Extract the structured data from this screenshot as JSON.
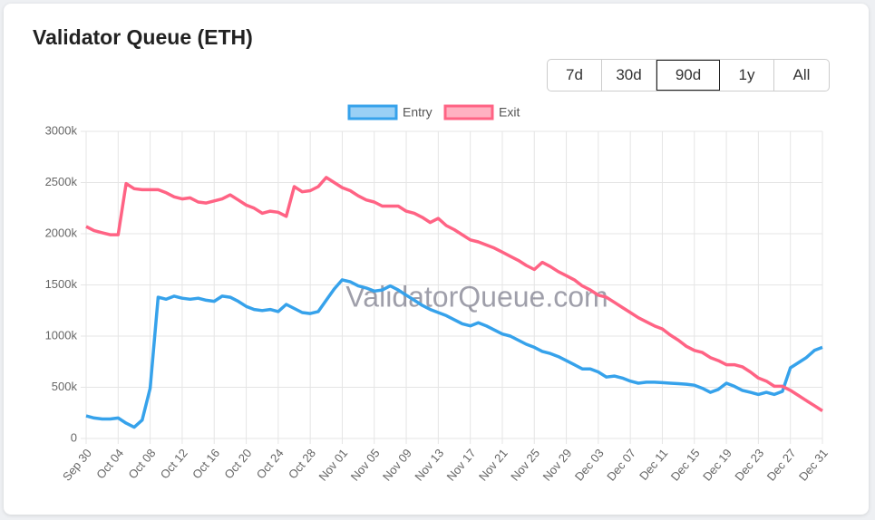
{
  "chart_data": {
    "type": "line",
    "title": "Validator Queue (ETH)",
    "watermark": "ValidatorQueue.com",
    "buttons": [
      {
        "label": "7d"
      },
      {
        "label": "30d"
      },
      {
        "label": "90d",
        "selected": true
      },
      {
        "label": "1y"
      },
      {
        "label": "All"
      }
    ],
    "categories": [
      "Sep 30",
      null,
      null,
      null,
      "Oct 04",
      null,
      null,
      null,
      "Oct 08",
      null,
      null,
      null,
      "Oct 12",
      null,
      null,
      null,
      "Oct 16",
      null,
      null,
      null,
      "Oct 20",
      null,
      null,
      null,
      "Oct 24",
      null,
      null,
      null,
      "Oct 28",
      null,
      null,
      null,
      "Nov 01",
      null,
      null,
      null,
      "Nov 05",
      null,
      null,
      null,
      "Nov 09",
      null,
      null,
      null,
      "Nov 13",
      null,
      null,
      null,
      "Nov 17",
      null,
      null,
      null,
      "Nov 21",
      null,
      null,
      null,
      "Nov 25",
      null,
      null,
      null,
      "Nov 29",
      null,
      null,
      null,
      "Dec 03",
      null,
      null,
      null,
      "Dec 07",
      null,
      null,
      null,
      "Dec 11",
      null,
      null,
      null,
      "Dec 15",
      null,
      null,
      null,
      "Dec 19",
      null,
      null,
      null,
      "Dec 23",
      null,
      null,
      null,
      "Dec 27",
      null,
      null,
      null,
      "Dec 31"
    ],
    "series": [
      {
        "name": "Entry",
        "color": "#36a2eb",
        "fill": "#9ad0f5",
        "values": [
          220000,
          200000,
          190000,
          190000,
          200000,
          150000,
          110000,
          180000,
          490000,
          1380000,
          1360000,
          1390000,
          1370000,
          1360000,
          1370000,
          1350000,
          1340000,
          1390000,
          1380000,
          1340000,
          1290000,
          1260000,
          1250000,
          1260000,
          1240000,
          1310000,
          1270000,
          1230000,
          1220000,
          1240000,
          1350000,
          1460000,
          1550000,
          1530000,
          1490000,
          1470000,
          1440000,
          1450000,
          1490000,
          1450000,
          1400000,
          1350000,
          1300000,
          1260000,
          1230000,
          1200000,
          1160000,
          1120000,
          1100000,
          1130000,
          1100000,
          1060000,
          1020000,
          1000000,
          960000,
          920000,
          890000,
          850000,
          830000,
          800000,
          760000,
          720000,
          680000,
          680000,
          650000,
          600000,
          610000,
          590000,
          560000,
          540000,
          550000,
          550000,
          545000,
          540000,
          535000,
          530000,
          520000,
          490000,
          450000,
          480000,
          540000,
          510000,
          470000,
          450000,
          430000,
          450000,
          430000,
          460000,
          690000,
          740000,
          790000,
          860000,
          890000
        ]
      },
      {
        "name": "Exit",
        "color": "#ff6384",
        "fill": "#ffb1c1",
        "values": [
          2070000,
          2030000,
          2010000,
          1990000,
          1990000,
          2490000,
          2440000,
          2430000,
          2430000,
          2430000,
          2400000,
          2360000,
          2340000,
          2350000,
          2310000,
          2300000,
          2320000,
          2340000,
          2380000,
          2330000,
          2280000,
          2250000,
          2200000,
          2220000,
          2210000,
          2170000,
          2460000,
          2410000,
          2420000,
          2460000,
          2550000,
          2500000,
          2450000,
          2420000,
          2370000,
          2330000,
          2310000,
          2270000,
          2270000,
          2270000,
          2220000,
          2200000,
          2160000,
          2110000,
          2150000,
          2080000,
          2040000,
          1990000,
          1940000,
          1920000,
          1890000,
          1860000,
          1820000,
          1780000,
          1740000,
          1690000,
          1650000,
          1720000,
          1680000,
          1630000,
          1590000,
          1550000,
          1490000,
          1450000,
          1400000,
          1380000,
          1330000,
          1280000,
          1230000,
          1180000,
          1140000,
          1100000,
          1070000,
          1010000,
          960000,
          900000,
          860000,
          840000,
          790000,
          760000,
          720000,
          720000,
          700000,
          650000,
          590000,
          560000,
          510000,
          510000,
          470000,
          420000,
          370000,
          320000,
          270000
        ]
      }
    ],
    "ylim": [
      0,
      3000000
    ],
    "yticks": [
      0,
      {
        "value": 500000,
        "label": "500k"
      },
      {
        "value": 1000000,
        "label": "1000k"
      },
      {
        "value": 1500000,
        "label": "1500k"
      },
      {
        "value": 2000000,
        "label": "2000k"
      },
      {
        "value": 2500000,
        "label": "2500k"
      },
      {
        "value": 3000000,
        "label": "3000k"
      }
    ],
    "grid": true,
    "legend": "top"
  }
}
